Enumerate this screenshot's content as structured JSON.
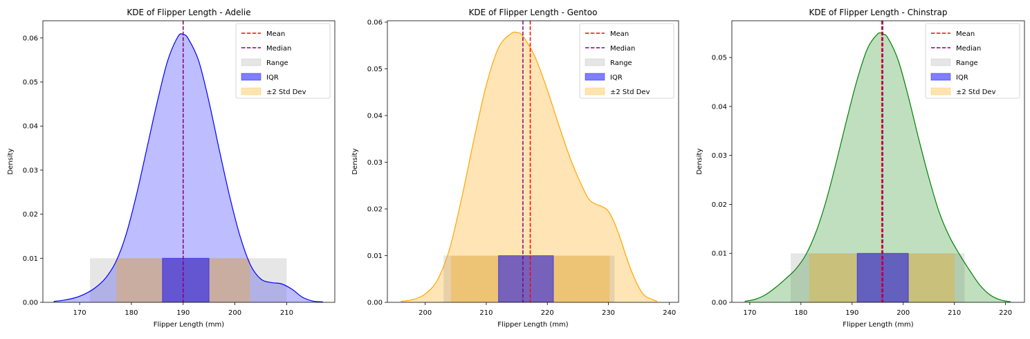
{
  "chart_data": [
    {
      "type": "area",
      "title": "KDE of Flipper Length - Adelie",
      "xlabel": "Flipper Length (mm)",
      "ylabel": "Density",
      "xlim": [
        162.9,
        219.3
      ],
      "ylim": [
        0,
        0.0639
      ],
      "xticks": [
        170,
        180,
        190,
        200,
        210
      ],
      "yticks": [
        0.0,
        0.01,
        0.02,
        0.03,
        0.04,
        0.05,
        0.06
      ],
      "ytick_decimals": 2,
      "color": "#0000ff",
      "fill_color": "#bdbdff",
      "legend": {
        "placement": "top-right",
        "entries": [
          {
            "label": "Mean",
            "kind": "line",
            "color": "#ff0000"
          },
          {
            "label": "Median",
            "kind": "line",
            "color": "#800080"
          },
          {
            "label": "Range",
            "kind": "patch",
            "color": "#808080",
            "opacity": 0.2
          },
          {
            "label": "IQR",
            "kind": "patch",
            "color": "#0000ff",
            "opacity": 0.5
          },
          {
            "label": "±2 Std Dev",
            "kind": "patch",
            "color": "#ffa500",
            "opacity": 0.3
          }
        ]
      },
      "mean": 190.0,
      "median": 190.0,
      "range": [
        172,
        210
      ],
      "iqr": [
        186,
        195
      ],
      "std2": [
        177.1,
        202.9
      ],
      "band_height": 0.01,
      "kde": {
        "x": [
          165,
          167,
          169,
          171,
          173,
          175,
          177,
          179,
          181,
          183,
          185,
          187,
          189,
          190,
          191,
          193,
          195,
          197,
          199,
          201,
          203,
          205,
          207,
          209,
          211,
          213,
          215,
          217
        ],
        "y": [
          0.0002,
          0.0005,
          0.001,
          0.0019,
          0.0033,
          0.0055,
          0.0092,
          0.0155,
          0.0245,
          0.035,
          0.0455,
          0.0548,
          0.0603,
          0.0608,
          0.0598,
          0.0548,
          0.0455,
          0.0345,
          0.024,
          0.015,
          0.0085,
          0.0053,
          0.0045,
          0.0042,
          0.003,
          0.0012,
          0.0003,
          0.0001
        ]
      }
    },
    {
      "type": "area",
      "title": "KDE of Flipper Length - Gentoo",
      "xlabel": "Flipper Length (mm)",
      "ylabel": "Density",
      "xlim": [
        193.8,
        241.5
      ],
      "ylim": [
        0,
        0.0603
      ],
      "xticks": [
        200,
        210,
        220,
        230,
        240
      ],
      "yticks": [
        0.0,
        0.01,
        0.02,
        0.03,
        0.04,
        0.05,
        0.06
      ],
      "ytick_decimals": 2,
      "color": "#ffa500",
      "fill_color": "#ffe5b5",
      "legend": {
        "placement": "top-right",
        "entries": [
          {
            "label": "Mean",
            "kind": "line",
            "color": "#ff0000"
          },
          {
            "label": "Median",
            "kind": "line",
            "color": "#800080"
          },
          {
            "label": "Range",
            "kind": "patch",
            "color": "#808080",
            "opacity": 0.2
          },
          {
            "label": "IQR",
            "kind": "patch",
            "color": "#0000ff",
            "opacity": 0.5
          },
          {
            "label": "±2 Std Dev",
            "kind": "patch",
            "color": "#ffa500",
            "opacity": 0.3
          }
        ]
      },
      "mean": 217.2,
      "median": 216.0,
      "range": [
        203,
        231
      ],
      "iqr": [
        212,
        221
      ],
      "std2": [
        204.2,
        230.2
      ],
      "band_height": 0.01,
      "kde": {
        "x": [
          196,
          198,
          200,
          202,
          204,
          206,
          208,
          210,
          212,
          214,
          215,
          216,
          218,
          220,
          222,
          224,
          226,
          227,
          228,
          229,
          230,
          231,
          232,
          233,
          234,
          235,
          236,
          238
        ],
        "y": [
          0.0002,
          0.0006,
          0.0018,
          0.0048,
          0.0115,
          0.0225,
          0.035,
          0.0465,
          0.0545,
          0.0575,
          0.0578,
          0.057,
          0.0525,
          0.0455,
          0.0375,
          0.03,
          0.024,
          0.0218,
          0.021,
          0.0205,
          0.0195,
          0.017,
          0.0135,
          0.0095,
          0.006,
          0.0032,
          0.0014,
          0.0002
        ]
      }
    },
    {
      "type": "area",
      "title": "KDE of Flipper Length - Chinstrap",
      "xlabel": "Flipper Length (mm)",
      "ylabel": "Density",
      "xlim": [
        166.5,
        223.7
      ],
      "ylim": [
        0,
        0.0575
      ],
      "xticks": [
        170,
        180,
        190,
        200,
        210,
        220
      ],
      "yticks": [
        0.0,
        0.01,
        0.02,
        0.03,
        0.04,
        0.05
      ],
      "ytick_decimals": 2,
      "color": "#008000",
      "fill_color": "#bfdfbf",
      "legend": {
        "placement": "top-right",
        "entries": [
          {
            "label": "Mean",
            "kind": "line",
            "color": "#ff0000"
          },
          {
            "label": "Median",
            "kind": "line",
            "color": "#800080"
          },
          {
            "label": "Range",
            "kind": "patch",
            "color": "#808080",
            "opacity": 0.2
          },
          {
            "label": "IQR",
            "kind": "patch",
            "color": "#0000ff",
            "opacity": 0.5
          },
          {
            "label": "±2 Std Dev",
            "kind": "patch",
            "color": "#ffa500",
            "opacity": 0.3
          }
        ]
      },
      "mean": 195.8,
      "median": 196.0,
      "range": [
        178,
        212
      ],
      "iqr": [
        191,
        201
      ],
      "std2": [
        181.6,
        210.1
      ],
      "band_height": 0.01,
      "kde": {
        "x": [
          169,
          171,
          173,
          175,
          177,
          179,
          181,
          183,
          185,
          187,
          189,
          191,
          193,
          195,
          196,
          197,
          199,
          201,
          203,
          205,
          207,
          209,
          211,
          213,
          215,
          217,
          219,
          221
        ],
        "y": [
          0.0002,
          0.0006,
          0.0015,
          0.003,
          0.0048,
          0.0068,
          0.0098,
          0.0145,
          0.021,
          0.029,
          0.0375,
          0.0455,
          0.0518,
          0.0548,
          0.0548,
          0.054,
          0.0495,
          0.042,
          0.0335,
          0.0255,
          0.0185,
          0.0135,
          0.0098,
          0.0065,
          0.0035,
          0.0015,
          0.0005,
          0.0001
        ]
      }
    }
  ]
}
